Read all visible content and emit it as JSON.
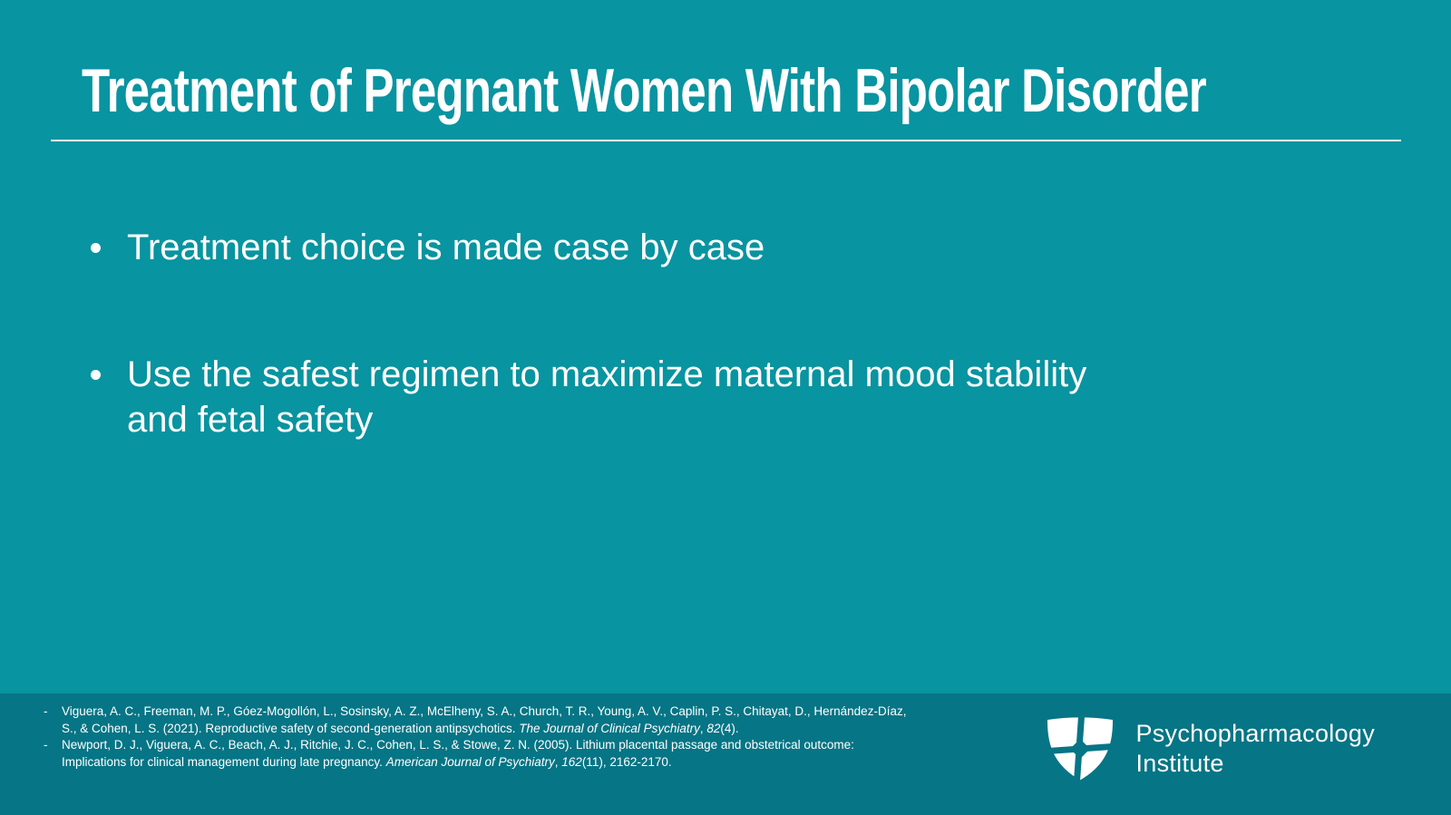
{
  "slide": {
    "title": "Treatment of Pregnant Women With Bipolar Disorder",
    "bullets": [
      "Treatment choice is made case by case",
      "Use the safest regimen to maximize maternal mood stability and fetal safety"
    ]
  },
  "colors": {
    "background": "#0894A0",
    "footer_background": "#067585",
    "text": "#FFFFFF"
  },
  "footer": {
    "references": [
      {
        "marker": "-",
        "segments": [
          {
            "text": "Viguera, A. C., Freeman, M. P., Góez-Mogollón, L., Sosinsky, A. Z., McElheny, S. A., Church, T. R., Young, A. V., Caplin, P. S., Chitayat, D., Hernández-Díaz, S., & Cohen, L. S. (2021). Reproductive safety of second-generation antipsychotics. ",
            "italic": false
          },
          {
            "text": "The Journal of Clinical Psychiatry",
            "italic": true
          },
          {
            "text": ", ",
            "italic": false
          },
          {
            "text": "82",
            "italic": true
          },
          {
            "text": "(4).",
            "italic": false
          }
        ]
      },
      {
        "marker": "-",
        "segments": [
          {
            "text": "Newport, D. J., Viguera, A. C., Beach, A. J., Ritchie, J. C., Cohen, L. S., & Stowe, Z. N. (2005). Lithium placental passage and obstetrical outcome: Implications for clinical management during late pregnancy. ",
            "italic": false
          },
          {
            "text": "American Journal of Psychiatry",
            "italic": true
          },
          {
            "text": ", ",
            "italic": false
          },
          {
            "text": "162",
            "italic": true
          },
          {
            "text": "(11), 2162-2170.",
            "italic": false
          }
        ]
      }
    ],
    "logo": {
      "icon": "shield-cross-icon",
      "name_line1": "Psychopharmacology",
      "name_line2": "Institute"
    }
  }
}
